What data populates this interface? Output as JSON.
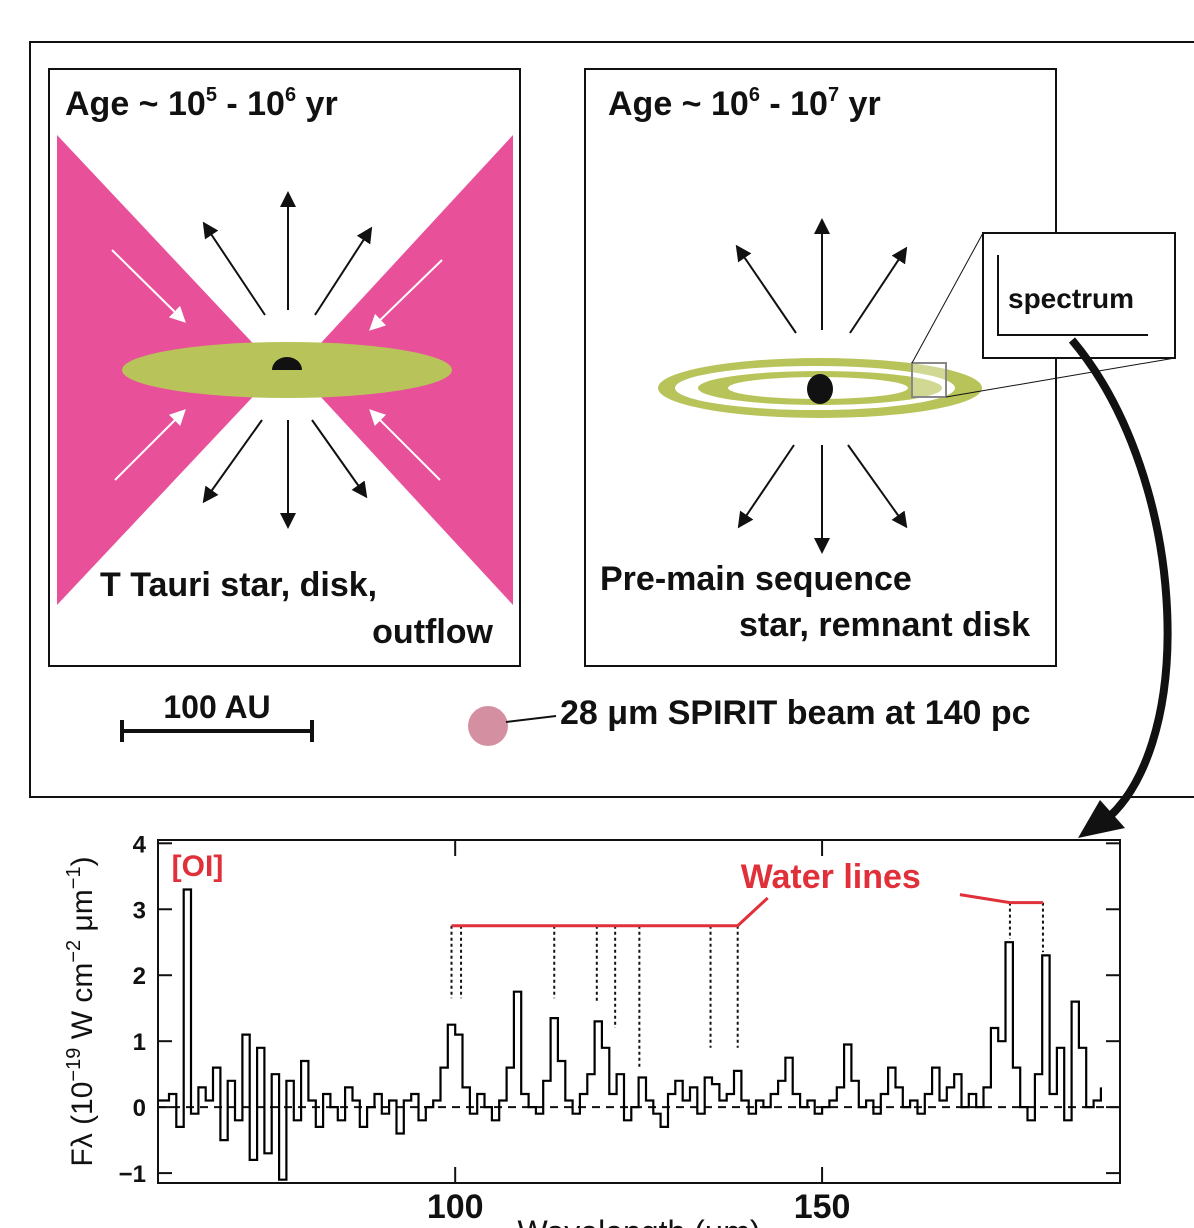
{
  "diagram": {
    "panels": [
      {
        "age": [
          "Age ~ 10",
          "5",
          " - 10",
          "6",
          " yr"
        ],
        "caption": [
          "T Tauri star, disk,",
          "outflow"
        ]
      },
      {
        "age": [
          "Age ~ 10",
          "6",
          " - 10",
          "7",
          " yr"
        ],
        "caption": [
          "Pre-main sequence",
          "star, remnant disk"
        ]
      }
    ],
    "inset": "spectrum",
    "scale_bar": "100 AU",
    "beam": "28 μm SPIRIT beam at 140 pc"
  },
  "chart_data": {
    "type": "line",
    "xlabel": "Wavelength (μm)",
    "ylabel": [
      "Fλ (10",
      "−19",
      " W cm",
      "−2",
      " μm",
      "−1",
      ")"
    ],
    "xlim": [
      59.5,
      190.6
    ],
    "ylim": [
      -1.15,
      4.05
    ],
    "xticks": [
      100,
      150
    ],
    "yticks": [
      {
        "value": -1,
        "label": "−1"
      },
      0,
      1,
      2,
      3,
      4
    ],
    "hline": 0,
    "color": "#000000",
    "annotation_color": "#e0303a",
    "oi_label": {
      "text": "[OI]",
      "x": 63
    },
    "water_label": "Water lines",
    "water_lines": [
      {
        "x": 99.5,
        "y": [
          2.75,
          1.65
        ]
      },
      {
        "x": 100.8,
        "y": [
          2.75,
          1.65
        ]
      },
      {
        "x": 113.5,
        "y": [
          2.75,
          1.65
        ]
      },
      {
        "x": 119.3,
        "y": [
          2.75,
          1.6
        ]
      },
      {
        "x": 121.8,
        "y": [
          2.75,
          1.2
        ]
      },
      {
        "x": 125.1,
        "y": [
          2.75,
          0.6
        ]
      },
      {
        "x": 134.8,
        "y": [
          2.75,
          0.9
        ]
      },
      {
        "x": 138.5,
        "y": [
          2.75,
          0.9
        ]
      },
      {
        "x": 175.6,
        "y": [
          3.1,
          2.55
        ]
      },
      {
        "x": 180.1,
        "y": [
          3.1,
          2.35
        ]
      }
    ],
    "x": [
      60,
      61,
      62,
      63,
      64,
      65,
      66,
      67,
      68,
      69,
      70,
      71,
      72,
      73,
      74,
      75,
      76,
      77,
      78,
      79,
      80,
      81,
      82,
      83,
      84,
      85,
      86,
      87,
      88,
      89,
      90,
      91,
      92,
      93,
      94,
      95,
      96,
      97,
      98,
      99,
      100,
      101,
      102,
      103,
      104,
      105,
      106,
      107,
      108,
      109,
      110,
      111,
      112,
      113,
      114,
      115,
      116,
      117,
      118,
      119,
      120,
      121,
      122,
      123,
      124,
      125,
      126,
      127,
      128,
      129,
      130,
      131,
      132,
      133,
      134,
      135,
      136,
      137,
      138,
      139,
      140,
      141,
      142,
      143,
      144,
      145,
      146,
      147,
      148,
      149,
      150,
      151,
      152,
      153,
      154,
      155,
      156,
      157,
      158,
      159,
      160,
      161,
      162,
      163,
      164,
      165,
      166,
      167,
      168,
      169,
      170,
      171,
      172,
      173,
      174,
      175,
      176,
      177,
      178,
      179,
      180,
      181,
      182,
      183,
      184,
      185,
      186,
      187,
      188
    ],
    "series": [
      {
        "name": "spectrum",
        "values": [
          0.1,
          0.2,
          -0.3,
          3.3,
          -0.1,
          0.3,
          0.1,
          0.6,
          -0.5,
          0.4,
          -0.2,
          1.1,
          -0.8,
          0.9,
          -0.7,
          0.5,
          -1.1,
          0.4,
          -0.2,
          0.7,
          0.1,
          -0.3,
          0.2,
          0.0,
          -0.2,
          0.3,
          0.1,
          -0.3,
          0.0,
          0.2,
          -0.1,
          0.1,
          -0.4,
          0.1,
          0.2,
          -0.2,
          0.0,
          0.1,
          0.6,
          1.25,
          1.1,
          0.3,
          -0.1,
          0.2,
          0.0,
          -0.2,
          0.1,
          0.6,
          1.75,
          0.2,
          0.0,
          -0.1,
          0.4,
          1.35,
          0.7,
          0.1,
          -0.1,
          0.2,
          0.5,
          1.3,
          0.9,
          0.2,
          0.5,
          -0.2,
          0.0,
          0.45,
          0.1,
          -0.1,
          -0.3,
          0.2,
          0.4,
          0.1,
          0.3,
          -0.1,
          0.45,
          0.35,
          0.1,
          0.2,
          0.55,
          0.1,
          -0.1,
          0.1,
          0.0,
          0.2,
          0.4,
          0.75,
          0.2,
          0.0,
          0.1,
          -0.1,
          0.0,
          0.1,
          0.3,
          0.95,
          0.4,
          0.0,
          0.1,
          -0.1,
          0.2,
          0.6,
          0.3,
          0.0,
          0.1,
          -0.1,
          0.2,
          0.6,
          0.1,
          0.3,
          0.5,
          0.0,
          0.2,
          0.0,
          0.3,
          1.2,
          1.0,
          2.5,
          0.6,
          0.0,
          -0.2,
          0.5,
          2.3,
          0.2,
          0.9,
          -0.2,
          1.6,
          0.9,
          0.0,
          0.1,
          0.3
        ]
      }
    ]
  }
}
